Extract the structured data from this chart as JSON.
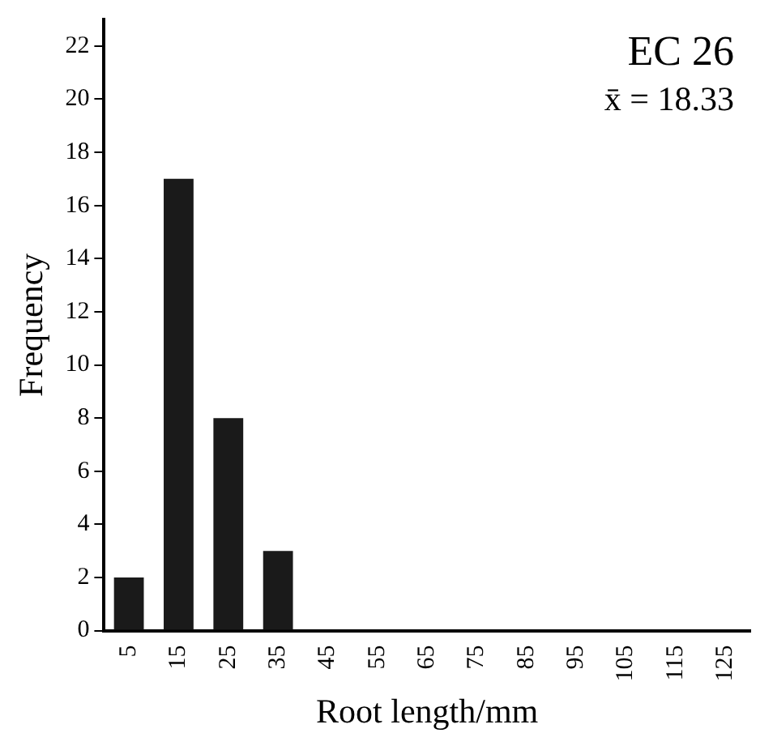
{
  "chart_data": {
    "type": "bar",
    "xlabel": "Root length/mm",
    "ylabel": "Frequency",
    "categories": [
      "5",
      "15",
      "25",
      "35",
      "45",
      "55",
      "65",
      "75",
      "85",
      "95",
      "105",
      "115",
      "125"
    ],
    "values": [
      2,
      17,
      8,
      3,
      0,
      0,
      0,
      0,
      0,
      0,
      0,
      0,
      0
    ],
    "color": "#1a1a1a",
    "ylim": [
      0,
      23
    ],
    "yticks": [
      0,
      2,
      4,
      6,
      8,
      10,
      12,
      14,
      16,
      18,
      20,
      22
    ],
    "grid": false,
    "legend": false,
    "annotations": [
      "EC 26",
      "x̄ = 18.33"
    ]
  }
}
